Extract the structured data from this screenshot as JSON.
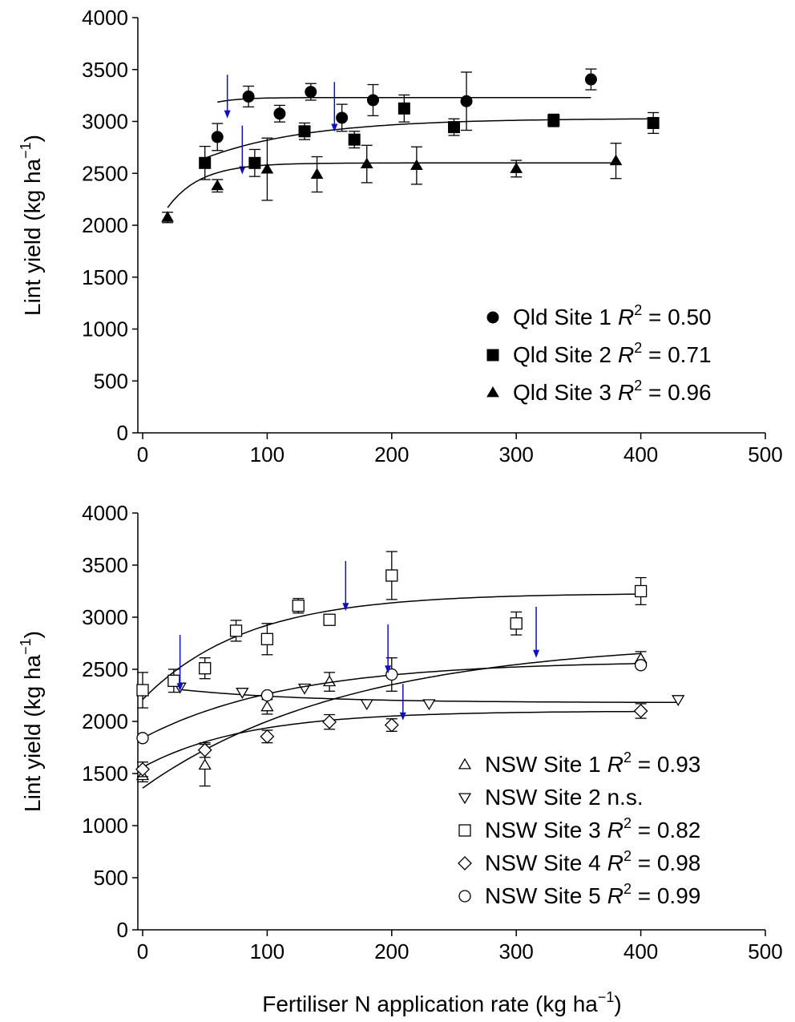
{
  "colors": {
    "ink": "#000000",
    "arrow": "#1010c0",
    "background": "#ffffff"
  },
  "chart_data": [
    {
      "type": "scatter",
      "panel": "top",
      "xlim": [
        0,
        500
      ],
      "ylim": [
        0,
        4000
      ],
      "x_ticks": [
        "0",
        "100",
        "200",
        "300",
        "400",
        "500"
      ],
      "y_ticks": [
        "0",
        "500",
        "1000",
        "1500",
        "2000",
        "2500",
        "3000",
        "3500",
        "4000"
      ],
      "ylabel": {
        "text": "Lint yield (kg ha",
        "sup": "−1",
        "close": ")"
      },
      "xlabel": null,
      "legend_position": "bottom-right",
      "series": [
        {
          "name": "Qld Site 1",
          "marker": "filled-circle",
          "r2_label": "R",
          "r2_sup": "2",
          "r2_value": " = 0.50",
          "points": [
            {
              "x": 60,
              "y": 2850,
              "err": 130
            },
            {
              "x": 85,
              "y": 3240,
              "err": 100
            },
            {
              "x": 110,
              "y": 3075,
              "err": 80
            },
            {
              "x": 135,
              "y": 3285,
              "err": 80
            },
            {
              "x": 160,
              "y": 3035,
              "err": 130
            },
            {
              "x": 185,
              "y": 3205,
              "err": 150
            },
            {
              "x": 260,
              "y": 3195,
              "err": 280
            },
            {
              "x": 360,
              "y": 3405,
              "err": 100
            }
          ],
          "fit": {
            "a": 3230,
            "b": 1200,
            "c": 0.055,
            "x0": 60,
            "x1": 360
          },
          "arrows": [
            {
              "x": 68,
              "y_tip": 3030,
              "y_start": 3450
            }
          ]
        },
        {
          "name": "Qld Site 2",
          "marker": "filled-square",
          "r2_label": "R",
          "r2_sup": "2",
          "r2_value": " = 0.71",
          "points": [
            {
              "x": 50,
              "y": 2600,
              "err": 160
            },
            {
              "x": 90,
              "y": 2600,
              "err": 130
            },
            {
              "x": 130,
              "y": 2905,
              "err": 80
            },
            {
              "x": 170,
              "y": 2825,
              "err": 80
            },
            {
              "x": 210,
              "y": 3125,
              "err": 130
            },
            {
              "x": 250,
              "y": 2945,
              "err": 80
            },
            {
              "x": 330,
              "y": 3010,
              "err": 60
            },
            {
              "x": 410,
              "y": 2985,
              "err": 100
            }
          ],
          "fit": {
            "a": 3030,
            "b": 700,
            "c": 0.012,
            "x0": 50,
            "x1": 410
          },
          "arrows": [
            {
              "x": 80,
              "y_tip": 2490,
              "y_start": 2960
            },
            {
              "x": 154,
              "y_tip": 2900,
              "y_start": 3380
            }
          ]
        },
        {
          "name": "Qld Site 3",
          "marker": "filled-triangle",
          "r2_label": "R",
          "r2_sup": "2",
          "r2_value": " = 0.96",
          "points": [
            {
              "x": 20,
              "y": 2075,
              "err": 50
            },
            {
              "x": 60,
              "y": 2380,
              "err": 60
            },
            {
              "x": 100,
              "y": 2540,
              "err": 300
            },
            {
              "x": 140,
              "y": 2490,
              "err": 170
            },
            {
              "x": 180,
              "y": 2590,
              "err": 180
            },
            {
              "x": 220,
              "y": 2575,
              "err": 180
            },
            {
              "x": 300,
              "y": 2545,
              "err": 80
            },
            {
              "x": 380,
              "y": 2620,
              "err": 170
            }
          ],
          "fit": {
            "a": 2600,
            "b": 920,
            "c": 0.038,
            "x0": 20,
            "x1": 380
          },
          "arrows": []
        }
      ]
    },
    {
      "type": "scatter",
      "panel": "bottom",
      "xlim": [
        0,
        500
      ],
      "ylim": [
        0,
        4000
      ],
      "x_ticks": [
        "0",
        "100",
        "200",
        "300",
        "400",
        "500"
      ],
      "y_ticks": [
        "0",
        "500",
        "1000",
        "1500",
        "2000",
        "2500",
        "3000",
        "3500",
        "4000"
      ],
      "ylabel": {
        "text": "Lint yield (kg ha",
        "sup": "−1",
        "close": ")"
      },
      "xlabel": {
        "text": "Fertiliser N application rate (kg ha",
        "sup": "−1",
        "close": ")"
      },
      "legend_position": "bottom-right",
      "series": [
        {
          "name": "NSW Site 1",
          "marker": "open-triangle",
          "r2_label": "R",
          "r2_sup": "2",
          "r2_value": " = 0.93",
          "points": [
            {
              "x": 0,
              "y": 1480,
              "err": 60
            },
            {
              "x": 50,
              "y": 1580,
              "err": 200
            },
            {
              "x": 100,
              "y": 2140,
              "err": 70
            },
            {
              "x": 150,
              "y": 2380,
              "err": 90
            },
            {
              "x": 400,
              "y": 2600,
              "err": 70
            }
          ],
          "fit": {
            "a": 2780,
            "b": 1420,
            "c": 0.006,
            "x0": 0,
            "x1": 400
          },
          "arrows": [
            {
              "x": 316,
              "y_tip": 2610,
              "y_start": 3100
            }
          ]
        },
        {
          "name": "NSW Site 2 n.s.",
          "marker": "open-down-triangle",
          "r2_label": "",
          "r2_sup": "",
          "r2_value": "",
          "points": [
            {
              "x": 30,
              "y": 2330,
              "err": 0
            },
            {
              "x": 80,
              "y": 2280,
              "err": 0
            },
            {
              "x": 130,
              "y": 2320,
              "err": 0
            },
            {
              "x": 180,
              "y": 2170,
              "err": 0
            },
            {
              "x": 230,
              "y": 2170,
              "err": 0
            },
            {
              "x": 430,
              "y": 2210,
              "err": 0
            }
          ],
          "fit": {
            "a": 2180,
            "b": -170,
            "c": 0.01,
            "x0": 28,
            "x1": 430
          },
          "arrows": []
        },
        {
          "name": "NSW Site 3",
          "marker": "open-square",
          "r2_label": "R",
          "r2_sup": "2",
          "r2_value": " = 0.82",
          "points": [
            {
              "x": 0,
              "y": 2300,
              "err": 170
            },
            {
              "x": 25,
              "y": 2390,
              "err": 110
            },
            {
              "x": 50,
              "y": 2510,
              "err": 100
            },
            {
              "x": 75,
              "y": 2870,
              "err": 100
            },
            {
              "x": 100,
              "y": 2790,
              "err": 150
            },
            {
              "x": 125,
              "y": 3110,
              "err": 70
            },
            {
              "x": 150,
              "y": 2975,
              "err": 50
            },
            {
              "x": 200,
              "y": 3400,
              "err": 230
            },
            {
              "x": 300,
              "y": 2940,
              "err": 110
            },
            {
              "x": 400,
              "y": 3250,
              "err": 130
            }
          ],
          "fit": {
            "a": 3230,
            "b": 1020,
            "c": 0.012,
            "x0": 0,
            "x1": 400
          },
          "arrows": [
            {
              "x": 30,
              "y_tip": 2290,
              "y_start": 2830
            },
            {
              "x": 163,
              "y_tip": 3060,
              "y_start": 3540
            }
          ]
        },
        {
          "name": "NSW Site 4",
          "marker": "open-diamond",
          "r2_label": "R",
          "r2_sup": "2",
          "r2_value": " = 0.98",
          "points": [
            {
              "x": 0,
              "y": 1540,
              "err": 70
            },
            {
              "x": 50,
              "y": 1725,
              "err": 70
            },
            {
              "x": 100,
              "y": 1855,
              "err": 60
            },
            {
              "x": 150,
              "y": 1995,
              "err": 70
            },
            {
              "x": 200,
              "y": 1965,
              "err": 60
            },
            {
              "x": 400,
              "y": 2100,
              "err": 70
            }
          ],
          "fit": {
            "a": 2100,
            "b": 540,
            "c": 0.012,
            "x0": 0,
            "x1": 400
          },
          "arrows": [
            {
              "x": 209,
              "y_tip": 2010,
              "y_start": 2360
            }
          ]
        },
        {
          "name": "NSW Site 5",
          "marker": "open-circle",
          "r2_label": "R",
          "r2_sup": "2",
          "r2_value": " = 0.99",
          "points": [
            {
              "x": 0,
              "y": 1840,
              "err": 0
            },
            {
              "x": 100,
              "y": 2250,
              "err": 0
            },
            {
              "x": 200,
              "y": 2450,
              "err": 160
            },
            {
              "x": 400,
              "y": 2540,
              "err": 0
            }
          ],
          "fit": {
            "a": 2580,
            "b": 740,
            "c": 0.0085,
            "x0": 0,
            "x1": 400
          },
          "arrows": [
            {
              "x": 197,
              "y_tip": 2460,
              "y_start": 2930
            }
          ]
        }
      ]
    }
  ]
}
